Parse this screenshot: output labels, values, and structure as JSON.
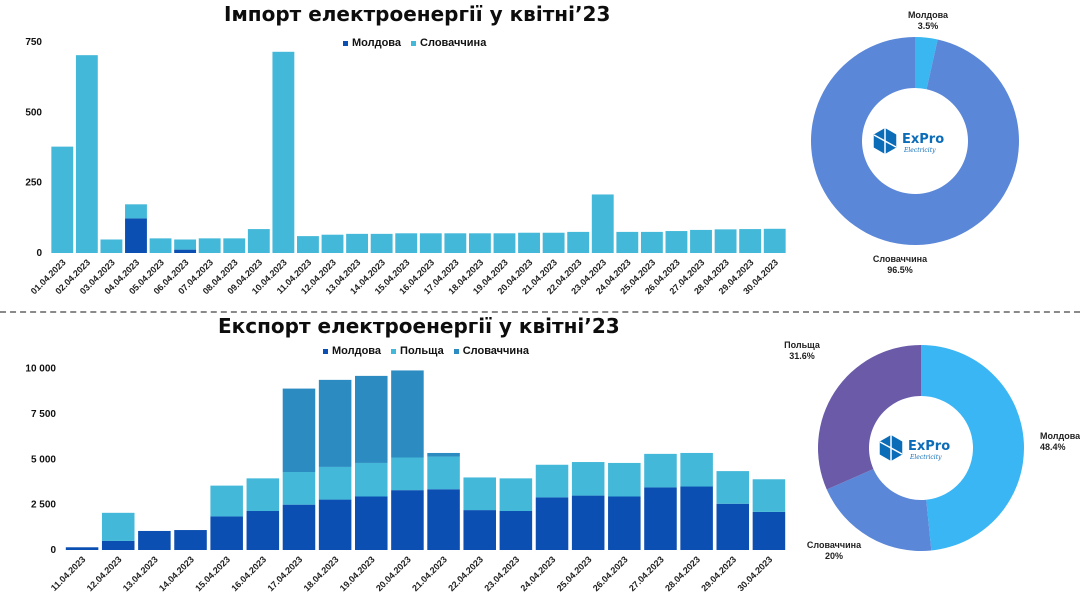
{
  "colors": {
    "moldova": "#0b4fb3",
    "slovakia": "#44b8d8",
    "poland": "#44b8d8",
    "slovakia_export": "#2c8bc0",
    "donut_import_slovakia": "#5b87d8",
    "donut_import_moldova": "#3ab6f0",
    "donut_export_moldova": "#3ab6f5",
    "donut_export_poland": "#6a5aa8",
    "donut_export_slovakia": "#5b87d8",
    "logo": "#0b6cb8"
  },
  "logo": {
    "text": "ExPro",
    "sub": "Electricity"
  },
  "chart_data": [
    {
      "type": "bar",
      "stacked": true,
      "title": "Імпорт електроенергії у квітні’23",
      "legend_position": "top",
      "categories": [
        "01.04.2023",
        "02.04.2023",
        "03.04.2023",
        "04.04.2023",
        "05.04.2023",
        "06.04.2023",
        "07.04.2023",
        "08.04.2023",
        "09.04.2023",
        "10.04.2023",
        "11.04.2023",
        "12.04.2023",
        "13.04.2023",
        "14.04.2023",
        "15.04.2023",
        "16.04.2023",
        "17.04.2023",
        "18.04.2023",
        "19.04.2023",
        "20.04.2023",
        "21.04.2023",
        "22.04.2023",
        "23.04.2023",
        "24.04.2023",
        "25.04.2023",
        "26.04.2023",
        "27.04.2023",
        "28.04.2023",
        "29.04.2023",
        "30.04.2023"
      ],
      "series": [
        {
          "name": "Молдова",
          "values": [
            0,
            0,
            0,
            123,
            0,
            12,
            0,
            0,
            0,
            0,
            0,
            0,
            0,
            0,
            0,
            0,
            0,
            0,
            0,
            0,
            0,
            0,
            0,
            0,
            0,
            0,
            0,
            0,
            0,
            0
          ]
        },
        {
          "name": "Словаччина",
          "values": [
            378,
            703,
            48,
            50,
            52,
            36,
            52,
            52,
            85,
            715,
            60,
            65,
            68,
            68,
            70,
            70,
            70,
            70,
            70,
            72,
            72,
            75,
            208,
            75,
            75,
            78,
            82,
            84,
            85,
            86
          ]
        }
      ],
      "ylim": [
        0,
        780
      ],
      "yticks": [
        0,
        250,
        500,
        750
      ],
      "ytick_labels": [
        "0",
        "250",
        "500",
        "750"
      ]
    },
    {
      "type": "pie",
      "donut": true,
      "slices": [
        {
          "label": "Молдова",
          "value": 3.5,
          "pct_label": "3.5%"
        },
        {
          "label": "Словаччина",
          "value": 96.5,
          "pct_label": "96.5%"
        }
      ]
    },
    {
      "type": "bar",
      "stacked": true,
      "title": "Експорт електроенергії у квітні’23",
      "legend_position": "top",
      "categories": [
        "11.04.2023",
        "12.04.2023",
        "13.04.2023",
        "14.04.2023",
        "15.04.2023",
        "16.04.2023",
        "17.04.2023",
        "18.04.2023",
        "19.04.2023",
        "20.04.2023",
        "21.04.2023",
        "22.04.2023",
        "23.04.2023",
        "24.04.2023",
        "25.04.2023",
        "26.04.2023",
        "27.04.2023",
        "28.04.2023",
        "29.04.2023",
        "30.04.2023"
      ],
      "series": [
        {
          "name": "Молдова",
          "values": [
            150,
            500,
            1050,
            1100,
            1850,
            2150,
            2500,
            2780,
            2950,
            3300,
            3350,
            2200,
            2150,
            2900,
            3000,
            2950,
            3450,
            3500,
            2550,
            2100
          ]
        },
        {
          "name": "Польща",
          "values": [
            0,
            1550,
            0,
            0,
            1700,
            1800,
            1800,
            1800,
            1850,
            1800,
            1800,
            1800,
            1800,
            1800,
            1850,
            1850,
            1850,
            1850,
            1800,
            1800
          ]
        },
        {
          "name": "Словаччина",
          "values": [
            0,
            0,
            0,
            0,
            0,
            0,
            4600,
            4800,
            4800,
            4800,
            200,
            0,
            0,
            0,
            0,
            0,
            0,
            0,
            0,
            0
          ]
        }
      ],
      "ylim": [
        0,
        10200
      ],
      "yticks": [
        0,
        2500,
        5000,
        7500,
        10000
      ],
      "ytick_labels": [
        "0",
        "2 500",
        "5 000",
        "7 500",
        "10 000"
      ]
    },
    {
      "type": "pie",
      "donut": true,
      "slices": [
        {
          "label": "Молдова",
          "value": 48.4,
          "pct_label": "48.4%"
        },
        {
          "label": "Словаччина",
          "value": 20,
          "pct_label": "20%"
        },
        {
          "label": "Польща",
          "value": 31.6,
          "pct_label": "31.6%"
        }
      ]
    }
  ]
}
